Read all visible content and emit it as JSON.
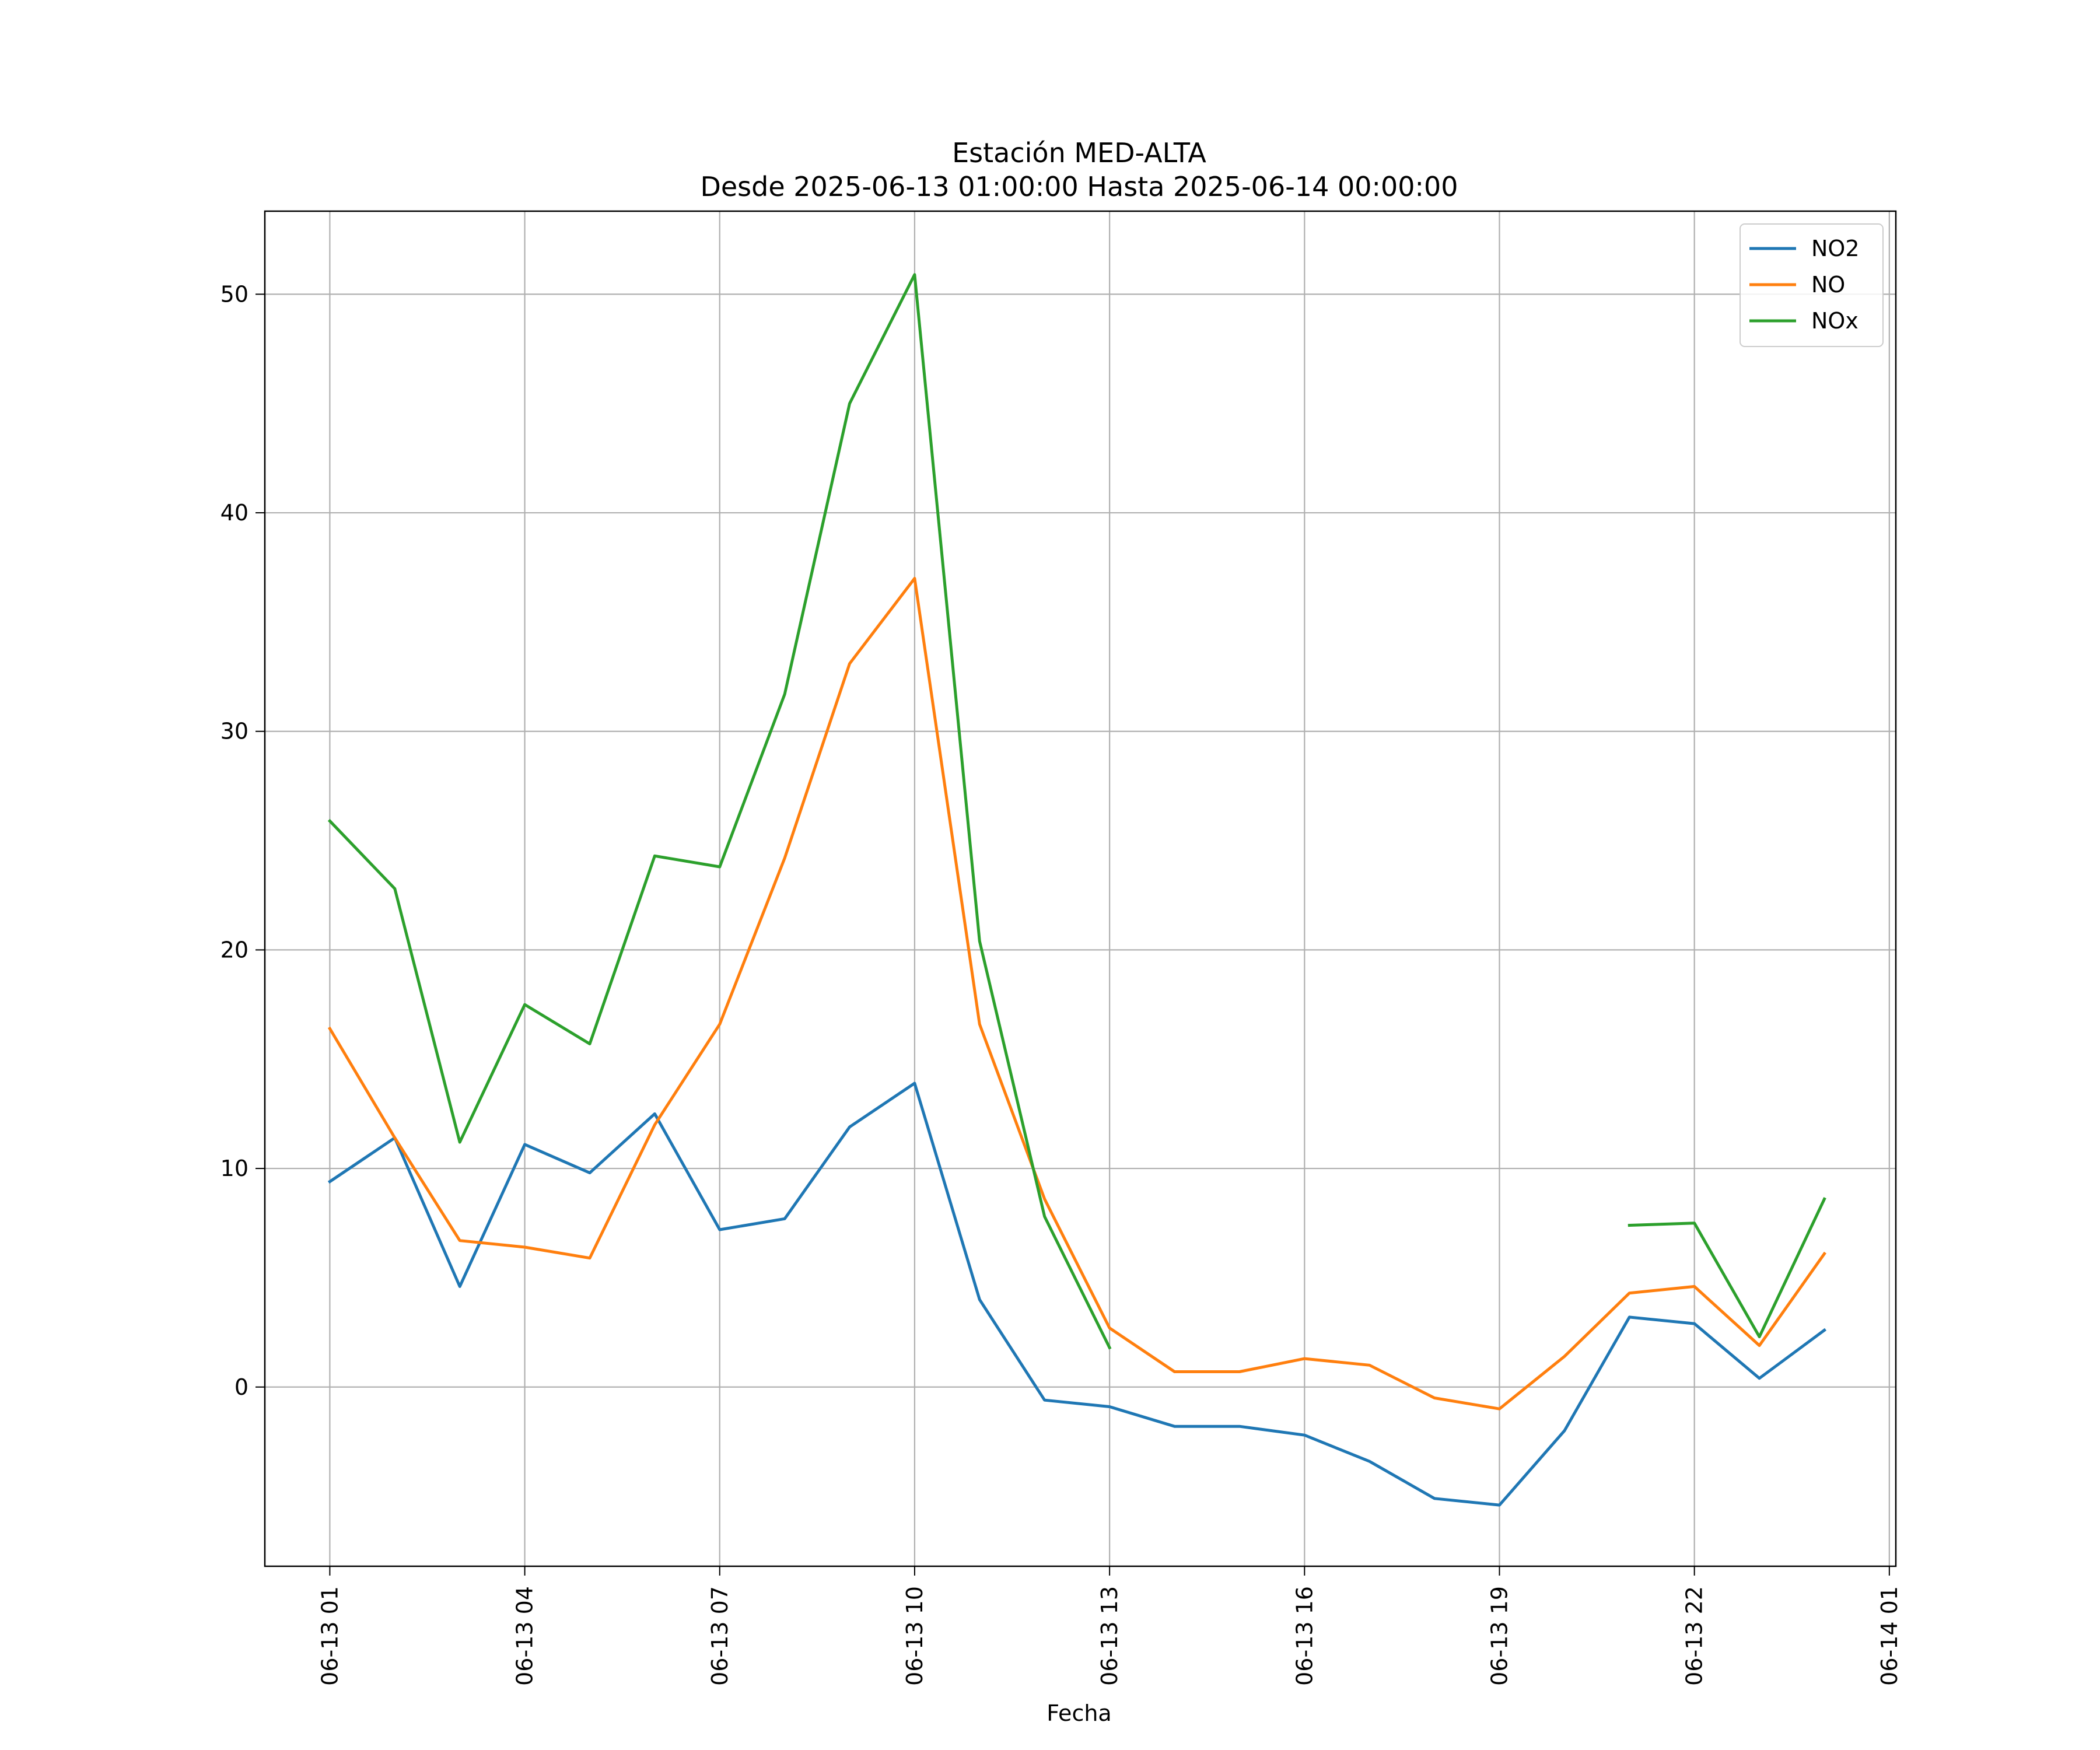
{
  "chart_data": {
    "type": "line",
    "title": "Estación MED-ALTA",
    "subtitle": "Desde 2025-06-13 01:00:00 Hasta 2025-06-14 00:00:00",
    "xlabel": "Fecha",
    "ylabel": "",
    "x": [
      "2025-06-13 01:00",
      "2025-06-13 02:00",
      "2025-06-13 03:00",
      "2025-06-13 04:00",
      "2025-06-13 05:00",
      "2025-06-13 06:00",
      "2025-06-13 07:00",
      "2025-06-13 08:00",
      "2025-06-13 09:00",
      "2025-06-13 10:00",
      "2025-06-13 11:00",
      "2025-06-13 12:00",
      "2025-06-13 13:00",
      "2025-06-13 14:00",
      "2025-06-13 15:00",
      "2025-06-13 16:00",
      "2025-06-13 17:00",
      "2025-06-13 18:00",
      "2025-06-13 19:00",
      "2025-06-13 20:00",
      "2025-06-13 21:00",
      "2025-06-13 22:00",
      "2025-06-13 23:00",
      "2025-06-14 00:00"
    ],
    "xlim": [
      "2025-06-13 00:00",
      "2025-06-14 01:06"
    ],
    "ylim": [
      -8.2,
      53.8
    ],
    "x_ticks": [
      {
        "value": "2025-06-13 01:00",
        "label": "06-13 01"
      },
      {
        "value": "2025-06-13 04:00",
        "label": "06-13 04"
      },
      {
        "value": "2025-06-13 07:00",
        "label": "06-13 07"
      },
      {
        "value": "2025-06-13 10:00",
        "label": "06-13 10"
      },
      {
        "value": "2025-06-13 13:00",
        "label": "06-13 13"
      },
      {
        "value": "2025-06-13 16:00",
        "label": "06-13 16"
      },
      {
        "value": "2025-06-13 19:00",
        "label": "06-13 19"
      },
      {
        "value": "2025-06-13 22:00",
        "label": "06-13 22"
      },
      {
        "value": "2025-06-14 01:00",
        "label": "06-14 01"
      }
    ],
    "y_ticks": [
      0,
      10,
      20,
      30,
      40,
      50
    ],
    "grid": true,
    "legend_position": "top-right",
    "series": [
      {
        "name": "NO2",
        "color": "#1f77b4",
        "values": [
          9.4,
          11.4,
          4.6,
          11.1,
          9.8,
          12.5,
          7.2,
          7.7,
          11.9,
          13.9,
          4.0,
          -0.6,
          -0.9,
          -1.8,
          -1.8,
          -2.2,
          -3.4,
          -5.1,
          -5.4,
          -2.0,
          3.2,
          2.9,
          0.4,
          2.6
        ]
      },
      {
        "name": "NO",
        "color": "#ff7f0e",
        "values": [
          16.4,
          11.4,
          6.7,
          6.4,
          5.9,
          12.0,
          16.6,
          24.2,
          33.1,
          37.0,
          16.6,
          8.6,
          2.7,
          0.7,
          0.7,
          1.3,
          1.0,
          -0.5,
          -1.0,
          1.4,
          4.3,
          4.6,
          1.9,
          6.1
        ]
      },
      {
        "name": "NOx",
        "color": "#2ca02c",
        "values": [
          25.9,
          22.8,
          11.2,
          17.5,
          15.7,
          24.3,
          23.8,
          31.7,
          45.0,
          50.9,
          20.4,
          7.8,
          1.8,
          null,
          null,
          null,
          null,
          null,
          null,
          null,
          7.4,
          7.5,
          2.3,
          8.6
        ]
      }
    ]
  }
}
